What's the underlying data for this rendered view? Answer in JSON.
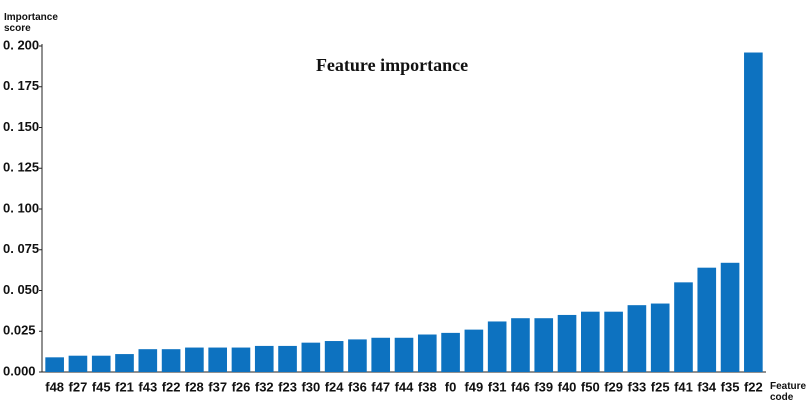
{
  "chart_data": {
    "type": "bar",
    "title": "Feature importance",
    "y_label": "Importance score",
    "x_label": "Feature code",
    "categories": [
      "f48",
      "f27",
      "f45",
      "f21",
      "f43",
      "f22",
      "f28",
      "f37",
      "f26",
      "f32",
      "f23",
      "f30",
      "f24",
      "f36",
      "f47",
      "f44",
      "f38",
      "f0",
      "f49",
      "f31",
      "f46",
      "f39",
      "f40",
      "f50",
      "f29",
      "f33",
      "f25",
      "f41",
      "f34",
      "f35",
      "f22"
    ],
    "values": [
      0.009,
      0.01,
      0.01,
      0.011,
      0.014,
      0.014,
      0.015,
      0.015,
      0.015,
      0.016,
      0.016,
      0.018,
      0.019,
      0.02,
      0.021,
      0.021,
      0.023,
      0.024,
      0.026,
      0.031,
      0.033,
      0.033,
      0.035,
      0.037,
      0.037,
      0.041,
      0.042,
      0.055,
      0.064,
      0.067,
      0.196
    ],
    "color": "#0d72c0",
    "ylim": [
      0,
      0.2
    ],
    "yticks": [
      {
        "value": 0,
        "label": "0.000"
      },
      {
        "value": 0.025,
        "label": "0.025"
      },
      {
        "value": 0.05,
        "label": "0. 050"
      },
      {
        "value": 0.075,
        "label": "0. 075"
      },
      {
        "value": 0.1,
        "label": "0. 100"
      },
      {
        "value": 0.125,
        "label": "0. 125"
      },
      {
        "value": 0.15,
        "label": "0. 150"
      },
      {
        "value": 0.175,
        "label": "0. 175"
      },
      {
        "value": 0.2,
        "label": "0. 200"
      }
    ],
    "grid": false
  }
}
